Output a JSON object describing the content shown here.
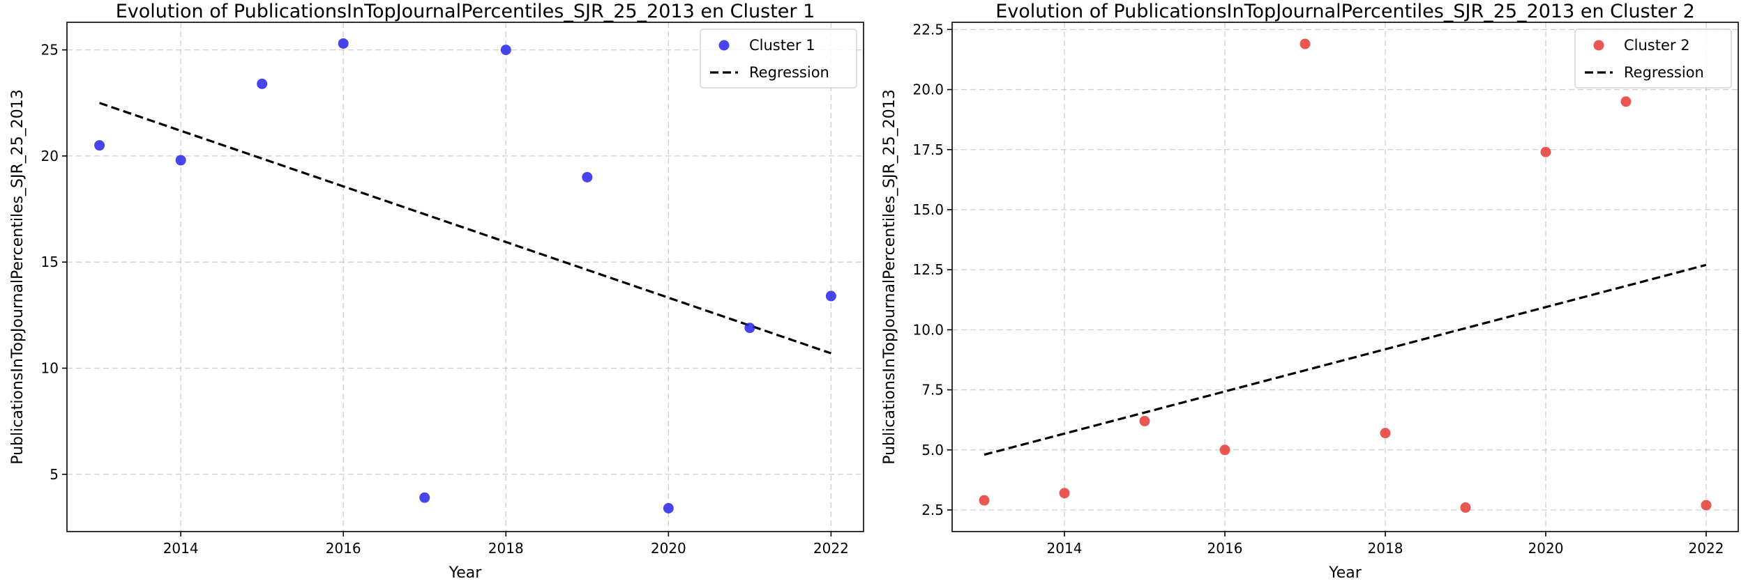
{
  "chart_data": [
    {
      "type": "scatter",
      "title": "Evolution of PublicationsInTopJournalPercentiles_SJR_25_2013 en Cluster 1",
      "xlabel": "Year",
      "ylabel": "PublicationsInTopJournalPercentiles_SJR_25_2013",
      "xlim": [
        2012.6,
        2022.4
      ],
      "ylim": [
        2.3,
        26.3
      ],
      "xticks": [
        2014,
        2016,
        2018,
        2020,
        2022
      ],
      "xtick_labels": [
        "2014",
        "2016",
        "2018",
        "2020",
        "2022"
      ],
      "yticks": [
        5,
        10,
        15,
        20,
        25
      ],
      "ytick_labels": [
        "5",
        "10",
        "15",
        "20",
        "25"
      ],
      "grid": true,
      "legend_position": "top-right",
      "color": "#2424e8",
      "series": [
        {
          "name": "Cluster 1",
          "x": [
            2013,
            2014,
            2015,
            2016,
            2017,
            2018,
            2019,
            2020,
            2021,
            2022
          ],
          "y": [
            20.5,
            19.8,
            23.4,
            25.3,
            3.9,
            25.0,
            19.0,
            3.4,
            11.9,
            13.4
          ]
        }
      ],
      "regression": {
        "name": "Regression",
        "x": [
          2013,
          2022
        ],
        "y": [
          22.5,
          10.7
        ]
      }
    },
    {
      "type": "scatter",
      "title": "Evolution of PublicationsInTopJournalPercentiles_SJR_25_2013 en Cluster 2",
      "xlabel": "Year",
      "ylabel": "PublicationsInTopJournalPercentiles_SJR_25_2013",
      "xlim": [
        2012.6,
        2022.4
      ],
      "ylim": [
        1.6,
        22.8
      ],
      "xticks": [
        2014,
        2016,
        2018,
        2020,
        2022
      ],
      "xtick_labels": [
        "2014",
        "2016",
        "2018",
        "2020",
        "2022"
      ],
      "yticks": [
        2.5,
        5.0,
        7.5,
        10.0,
        12.5,
        15.0,
        17.5,
        20.0,
        22.5
      ],
      "ytick_labels": [
        "2.5",
        "5.0",
        "7.5",
        "10.0",
        "12.5",
        "15.0",
        "17.5",
        "20.0",
        "22.5"
      ],
      "grid": true,
      "legend_position": "top-right",
      "color": "#e53935",
      "series": [
        {
          "name": "Cluster 2",
          "x": [
            2013,
            2014,
            2015,
            2016,
            2017,
            2018,
            2019,
            2020,
            2021,
            2022
          ],
          "y": [
            2.9,
            3.2,
            6.2,
            5.0,
            21.9,
            5.7,
            2.6,
            17.4,
            19.5,
            2.7
          ]
        }
      ],
      "regression": {
        "name": "Regression",
        "x": [
          2013,
          2022
        ],
        "y": [
          4.8,
          12.7
        ]
      }
    }
  ]
}
